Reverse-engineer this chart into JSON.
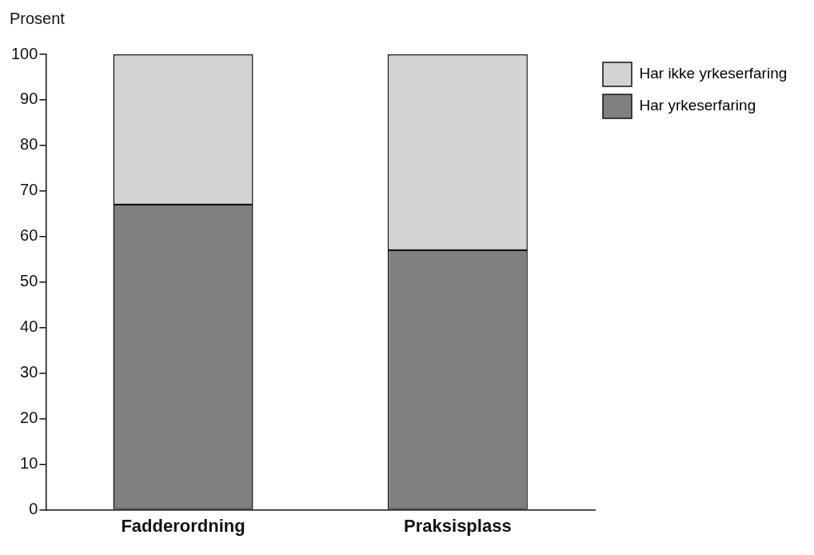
{
  "chart_data": {
    "type": "bar",
    "ylabel": "Prosent",
    "categories": [
      "Fadderordning",
      "Praksisplass"
    ],
    "stacked": true,
    "series": [
      {
        "name": "Har yrkeserfaring",
        "color": "#808080",
        "values": [
          67,
          57
        ]
      },
      {
        "name": "Har ikke yrkeserfaring",
        "color": "#d3d3d3",
        "values": [
          33,
          43
        ]
      }
    ],
    "ylim": [
      0,
      100
    ],
    "yticks": [
      0,
      10,
      20,
      30,
      40,
      50,
      60,
      70,
      80,
      90,
      100
    ],
    "grid": false,
    "legend": "top right"
  }
}
